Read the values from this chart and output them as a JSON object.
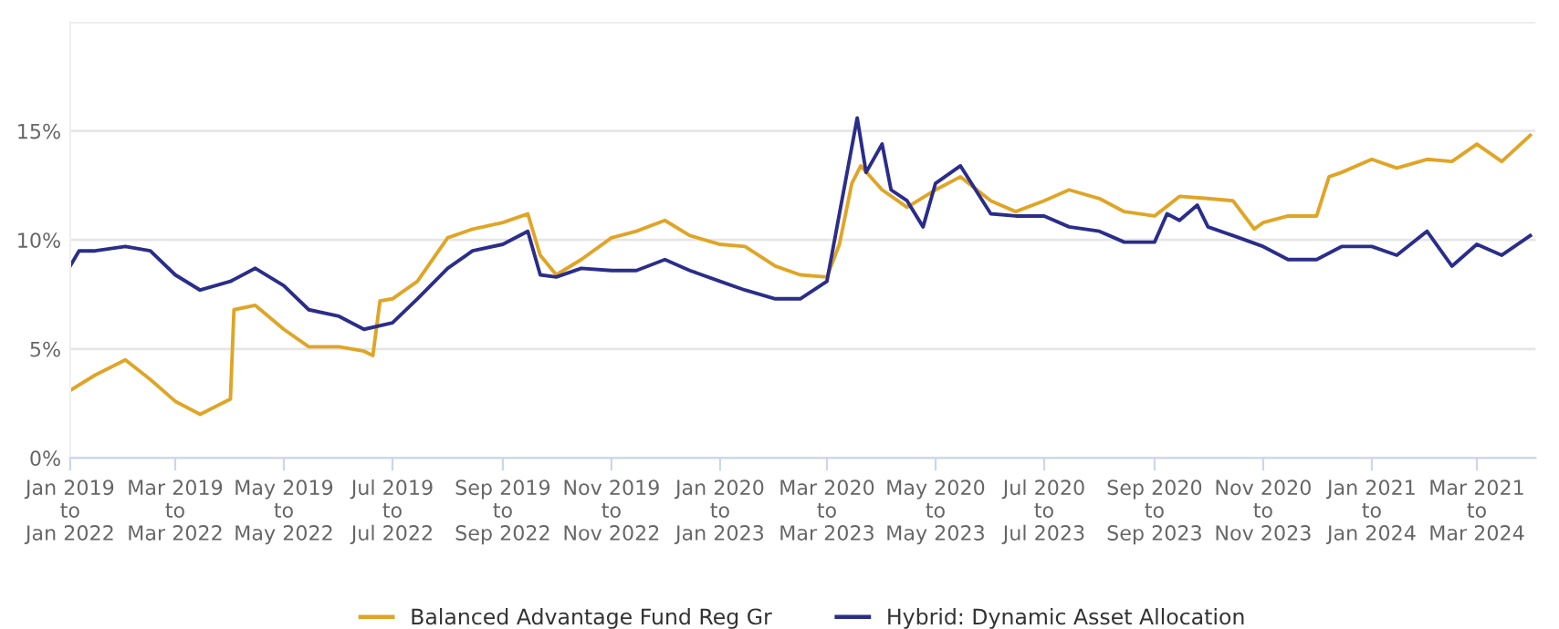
{
  "chart_data": {
    "type": "line",
    "xlim": [
      "2019-01-01",
      "2021-04-03"
    ],
    "xticks": [
      {
        "value": "2019-01-01",
        "label": "Jan 2019\nto\nJan 2022"
      },
      {
        "value": "2019-03-01",
        "label": "Mar 2019\nto\nMar 2022"
      },
      {
        "value": "2019-05-01",
        "label": "May 2019\nto\nMay 2022"
      },
      {
        "value": "2019-07-01",
        "label": "Jul 2019\nto\nJul 2022"
      },
      {
        "value": "2019-09-01",
        "label": "Sep 2019\nto\nSep 2022"
      },
      {
        "value": "2019-11-01",
        "label": "Nov 2019\nto\nNov 2022"
      },
      {
        "value": "2020-01-01",
        "label": "Jan 2020\nto\nJan 2023"
      },
      {
        "value": "2020-03-01",
        "label": "Mar 2020\nto\nMar 2023"
      },
      {
        "value": "2020-05-01",
        "label": "May 2020\nto\nMay 2023"
      },
      {
        "value": "2020-07-01",
        "label": "Jul 2020\nto\nJul 2023"
      },
      {
        "value": "2020-09-01",
        "label": "Sep 2020\nto\nSep 2023"
      },
      {
        "value": "2020-11-01",
        "label": "Nov 2020\nto\nNov 2023"
      },
      {
        "value": "2021-01-01",
        "label": "Jan 2021\nto\nJan 2024"
      },
      {
        "value": "2021-03-01",
        "label": "Mar 2021\nto\nMar 2024"
      }
    ],
    "ylim": [
      0,
      20
    ],
    "yticks": [
      {
        "value": 0,
        "label": "0%"
      },
      {
        "value": 5,
        "label": "5%"
      },
      {
        "value": 10,
        "label": "10%"
      },
      {
        "value": 15,
        "label": "15%"
      },
      {
        "value": 20,
        "label": null
      }
    ],
    "grid": "y",
    "legend": "bottom",
    "marker": "none",
    "line_style": "solid",
    "series": [
      {
        "name": "Balanced Advantage Fund Reg Gr",
        "color": "#e0a526",
        "x": [
          "2019-01-01",
          "2019-01-15",
          "2019-02-01",
          "2019-02-15",
          "2019-03-01",
          "2019-03-15",
          "2019-04-01",
          "2019-04-03",
          "2019-04-15",
          "2019-05-01",
          "2019-05-15",
          "2019-06-01",
          "2019-06-15",
          "2019-06-20",
          "2019-06-24",
          "2019-07-01",
          "2019-07-15",
          "2019-08-01",
          "2019-08-15",
          "2019-09-01",
          "2019-09-15",
          "2019-09-22",
          "2019-10-01",
          "2019-10-15",
          "2019-11-01",
          "2019-11-15",
          "2019-12-01",
          "2019-12-15",
          "2020-01-01",
          "2020-01-15",
          "2020-02-01",
          "2020-02-15",
          "2020-03-01",
          "2020-03-08",
          "2020-03-15",
          "2020-03-20",
          "2020-04-01",
          "2020-04-15",
          "2020-05-01",
          "2020-05-15",
          "2020-06-01",
          "2020-06-15",
          "2020-07-01",
          "2020-07-15",
          "2020-08-01",
          "2020-08-15",
          "2020-09-01",
          "2020-09-15",
          "2020-10-01",
          "2020-10-15",
          "2020-10-27",
          "2020-11-01",
          "2020-11-15",
          "2020-12-01",
          "2020-12-08",
          "2020-12-15",
          "2021-01-01",
          "2021-01-15",
          "2021-02-01",
          "2021-02-15",
          "2021-03-01",
          "2021-03-15",
          "2021-03-31"
        ],
        "values": [
          3.1,
          3.8,
          4.5,
          3.6,
          2.6,
          2.0,
          2.7,
          6.8,
          7.0,
          5.9,
          5.1,
          5.1,
          4.9,
          4.7,
          7.2,
          7.3,
          8.1,
          10.1,
          10.5,
          10.8,
          11.2,
          9.3,
          8.4,
          9.1,
          10.1,
          10.4,
          10.9,
          10.2,
          9.8,
          9.7,
          8.8,
          8.4,
          8.3,
          9.8,
          12.6,
          13.4,
          12.3,
          11.5,
          12.3,
          12.9,
          11.8,
          11.3,
          11.8,
          12.3,
          11.9,
          11.3,
          11.1,
          12.0,
          11.9,
          11.8,
          10.5,
          10.8,
          11.1,
          11.1,
          12.9,
          13.1,
          13.7,
          13.3,
          13.7,
          13.6,
          14.4,
          13.6,
          14.8
        ]
      },
      {
        "name": "Hybrid: Dynamic Asset Allocation",
        "color": "#2b2d8a",
        "x": [
          "2019-01-01",
          "2019-01-06",
          "2019-01-15",
          "2019-02-01",
          "2019-02-15",
          "2019-03-01",
          "2019-03-15",
          "2019-04-01",
          "2019-04-15",
          "2019-05-01",
          "2019-05-15",
          "2019-06-01",
          "2019-06-15",
          "2019-07-01",
          "2019-07-15",
          "2019-08-01",
          "2019-08-15",
          "2019-09-01",
          "2019-09-15",
          "2019-09-22",
          "2019-10-01",
          "2019-10-15",
          "2019-11-01",
          "2019-11-15",
          "2019-12-01",
          "2019-12-15",
          "2020-01-01",
          "2020-01-15",
          "2020-02-01",
          "2020-02-15",
          "2020-03-01",
          "2020-03-08",
          "2020-03-18",
          "2020-03-23",
          "2020-04-01",
          "2020-04-06",
          "2020-04-15",
          "2020-04-24",
          "2020-05-01",
          "2020-05-15",
          "2020-06-01",
          "2020-06-15",
          "2020-07-01",
          "2020-07-15",
          "2020-08-01",
          "2020-08-15",
          "2020-09-01",
          "2020-09-08",
          "2020-09-15",
          "2020-09-25",
          "2020-10-01",
          "2020-10-15",
          "2020-11-01",
          "2020-11-15",
          "2020-12-01",
          "2020-12-15",
          "2021-01-01",
          "2021-01-15",
          "2021-02-01",
          "2021-02-15",
          "2021-03-01",
          "2021-03-15",
          "2021-03-31"
        ],
        "values": [
          8.8,
          9.5,
          9.5,
          9.7,
          9.5,
          8.4,
          7.7,
          8.1,
          8.7,
          7.9,
          6.8,
          6.5,
          5.9,
          6.2,
          7.3,
          8.7,
          9.5,
          9.8,
          10.4,
          8.4,
          8.3,
          8.7,
          8.6,
          8.6,
          9.1,
          8.6,
          8.1,
          7.7,
          7.3,
          7.3,
          8.1,
          11.2,
          15.6,
          13.1,
          14.4,
          12.3,
          11.8,
          10.6,
          12.6,
          13.4,
          11.2,
          11.1,
          11.1,
          10.6,
          10.4,
          9.9,
          9.9,
          11.2,
          10.9,
          11.6,
          10.6,
          10.2,
          9.7,
          9.1,
          9.1,
          9.7,
          9.7,
          9.3,
          10.4,
          8.8,
          9.8,
          9.3,
          10.2
        ]
      }
    ]
  }
}
